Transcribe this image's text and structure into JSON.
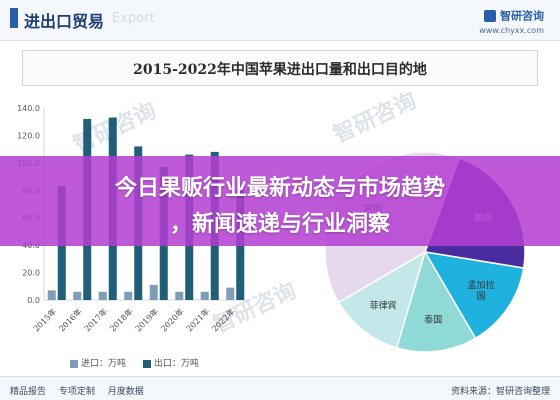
{
  "header": {
    "section_title": "进出口贸易",
    "watermark_sub": "Export",
    "brand_name": "智研咨询",
    "brand_url": "www.chyxx.com"
  },
  "chart_data": [
    {
      "type": "bar",
      "title": "2015-2022年中国苹果进出口量和出口目的地",
      "categories": [
        "2015年",
        "2016年",
        "2017年",
        "2018年",
        "2019年",
        "2020年",
        "2021年",
        "2022年"
      ],
      "series": [
        {
          "name": "进口：万吨",
          "values": [
            7,
            6,
            6,
            6,
            11,
            6,
            6,
            9
          ],
          "color": "#7f9db8"
        },
        {
          "name": "出口：万吨",
          "values": [
            83,
            132,
            133,
            112,
            97,
            106,
            108,
            80
          ],
          "color": "#1f5f7a"
        }
      ],
      "ylim": [
        0,
        140
      ],
      "yticks": [
        "0.0",
        "20.0",
        "40.0",
        "60.0",
        "80.0",
        "100.0",
        "120.0",
        "140.0"
      ],
      "grid": false,
      "legend": "bottom"
    },
    {
      "type": "pie",
      "slices": [
        {
          "label": "越南",
          "value": 22,
          "color": "#4a2ba0"
        },
        {
          "label": "孟加拉国",
          "value": 14,
          "color": "#1fb2de"
        },
        {
          "label": "泰国",
          "value": 13,
          "color": "#8fdad7"
        },
        {
          "label": "菲律宾",
          "value": 12,
          "color": "#c4e8ea"
        },
        {
          "label": "其他",
          "value": 39,
          "color": "#e6d8ee"
        }
      ]
    }
  ],
  "legend": {
    "import_label": "进口：万吨",
    "export_label": "出口：万吨"
  },
  "footer": {
    "links": [
      "精品报告",
      "专项定制",
      "月度数据"
    ],
    "source": "资料来源：智研咨询整理"
  },
  "watermark": "智研咨询",
  "banner": {
    "line1": "今日果贩行业最新动态与市场趋势",
    "line2": "，新闻速递与行业洞察"
  }
}
